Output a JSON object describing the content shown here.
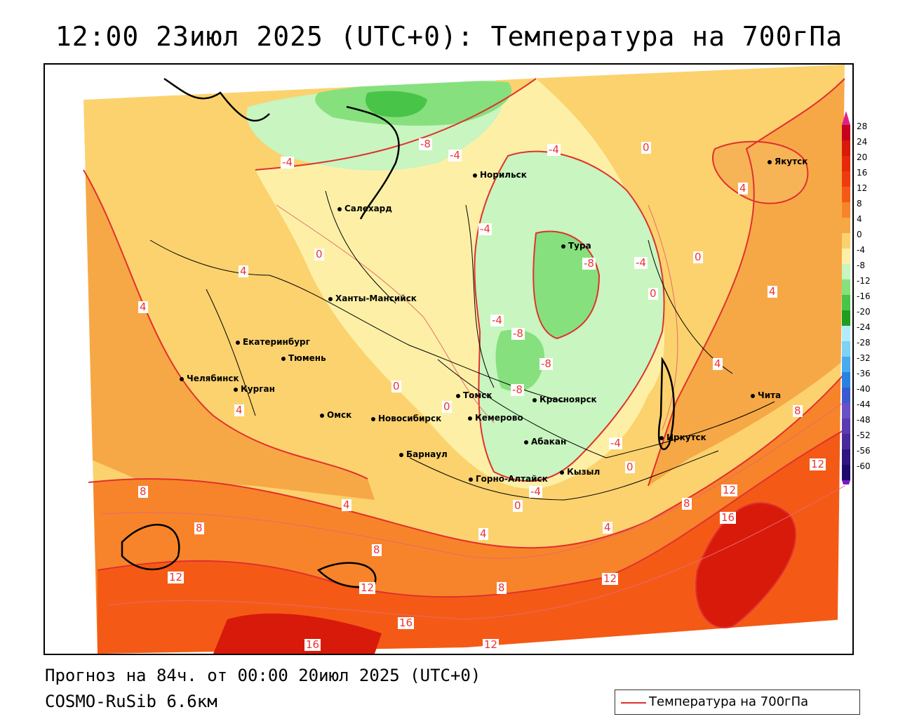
{
  "title": "12:00 23июл 2025 (UTC+0): Температура на 700гПа",
  "footer": {
    "forecast": "Прогноз на 84ч. от 00:00 20июл 2025 (UTC+0)",
    "model": "COSMO-RuSib 6.6км"
  },
  "legend": {
    "label": "Температура на 700гПа",
    "line_color": "#e03030"
  },
  "colorbar": {
    "labels": [
      "28",
      "24",
      "20",
      "16",
      "12",
      "8",
      "4",
      "0",
      "-4",
      "-8",
      "-12",
      "-16",
      "-20",
      "-24",
      "-28",
      "-32",
      "-36",
      "-40",
      "-44",
      "-48",
      "-52",
      "-56",
      "-60"
    ],
    "colors": [
      "#c8001e",
      "#d81a0a",
      "#e8280a",
      "#ef3c0e",
      "#f45a16",
      "#f7842a",
      "#f6a846",
      "#fbd26e",
      "#fdf0a6",
      "#c8f5c0",
      "#86e07e",
      "#48c448",
      "#1e9e1e",
      "#b2ecfa",
      "#7dd2f5",
      "#4aaaf0",
      "#2a82e0",
      "#3a5ad2",
      "#6a50c8",
      "#5a3ab0",
      "#48289a",
      "#301480",
      "#1e0a6a"
    ]
  },
  "cities": [
    {
      "name": "Якутск"
    },
    {
      "name": "Норильск"
    },
    {
      "name": "Салехард"
    },
    {
      "name": "Тура"
    },
    {
      "name": "Ханты-Мансийск"
    },
    {
      "name": "Екатеринбург"
    },
    {
      "name": "Тюмень"
    },
    {
      "name": "Челябинск"
    },
    {
      "name": "Курган"
    },
    {
      "name": "Омск"
    },
    {
      "name": "Новосибирск"
    },
    {
      "name": "Томск"
    },
    {
      "name": "Кемерово"
    },
    {
      "name": "Красноярск"
    },
    {
      "name": "Барнаул"
    },
    {
      "name": "Абакан"
    },
    {
      "name": "Кызыл"
    },
    {
      "name": "Горно-Алтайск"
    },
    {
      "name": "Иркутск"
    },
    {
      "name": "Чита"
    }
  ],
  "contour_labels": [
    "-4",
    "-8",
    "-4",
    "4",
    "0",
    "-4",
    "4",
    "-4",
    "0",
    "4",
    "4",
    "-8",
    "-4",
    "0",
    "0",
    "-4",
    "4",
    "-8",
    "-4",
    "-8",
    "4",
    "-8",
    "0",
    "0",
    "4",
    "-4",
    "8",
    "4",
    "8",
    "0",
    "8",
    "-4",
    "0",
    "4",
    "12",
    "12",
    "16",
    "4",
    "8",
    "12",
    "12",
    "8",
    "8",
    "16",
    "12",
    "16",
    "12"
  ]
}
